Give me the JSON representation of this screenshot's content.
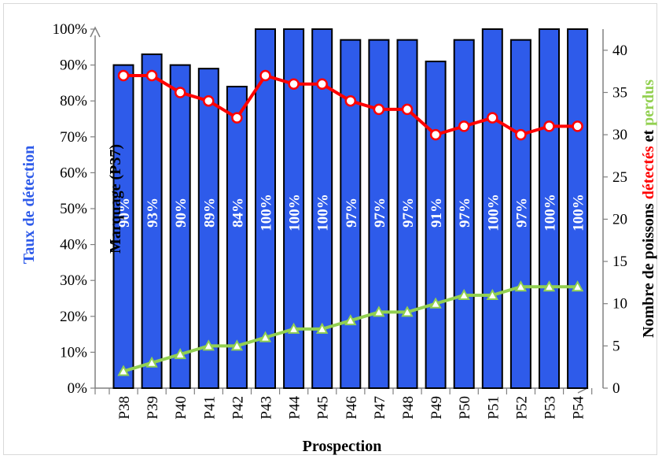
{
  "chart_data": {
    "type": "bar+line",
    "xlabel": "Prospection",
    "ylabel_left": "Taux de détection",
    "ylabel_right": {
      "part1": "Nombre de poissons ",
      "part2": "détectés",
      "part3": " et ",
      "part4": "perdus"
    },
    "annotation": "Marquage (P37)",
    "categories": [
      "P38",
      "P39",
      "P40",
      "P41",
      "P42",
      "P43",
      "P44",
      "P45",
      "P46",
      "P47",
      "P48",
      "P49",
      "P50",
      "P51",
      "P52",
      "P53",
      "P54"
    ],
    "left_axis": {
      "ylim": [
        0,
        100
      ],
      "ticks": [
        "0%",
        "10%",
        "20%",
        "30%",
        "40%",
        "50%",
        "60%",
        "70%",
        "80%",
        "90%",
        "100%"
      ]
    },
    "right_axis": {
      "ylim": [
        0,
        42.5
      ],
      "ticks": [
        "0",
        "5",
        "10",
        "15",
        "20",
        "25",
        "30",
        "35",
        "40"
      ]
    },
    "series": [
      {
        "name": "Taux de détection",
        "type": "bar",
        "axis": "left",
        "color": "#2e5bea",
        "values": [
          90,
          93,
          90,
          89,
          84,
          100,
          100,
          100,
          97,
          97,
          97,
          91,
          97,
          100,
          97,
          100,
          100
        ],
        "labels": [
          "90%",
          "93%",
          "90%",
          "89%",
          "84%",
          "100%",
          "100%",
          "100%",
          "97%",
          "97%",
          "97%",
          "91%",
          "97%",
          "100%",
          "97%",
          "100%",
          "100%"
        ]
      },
      {
        "name": "détectés",
        "type": "line",
        "axis": "right",
        "color": "#ff0000",
        "values": [
          37,
          37,
          35,
          34,
          32,
          37,
          36,
          36,
          34,
          33,
          33,
          30,
          31,
          32,
          30,
          31,
          31
        ]
      },
      {
        "name": "perdus",
        "type": "line",
        "axis": "right",
        "color": "#92d050",
        "values": [
          2,
          3,
          4,
          5,
          5,
          6,
          7,
          7,
          8,
          9,
          9,
          10,
          11,
          11,
          12,
          12,
          12
        ]
      }
    ],
    "colors": {
      "left_title": "#2e5bea",
      "detected": "#ff0000",
      "lost": "#92d050",
      "axis": "#808080"
    }
  }
}
